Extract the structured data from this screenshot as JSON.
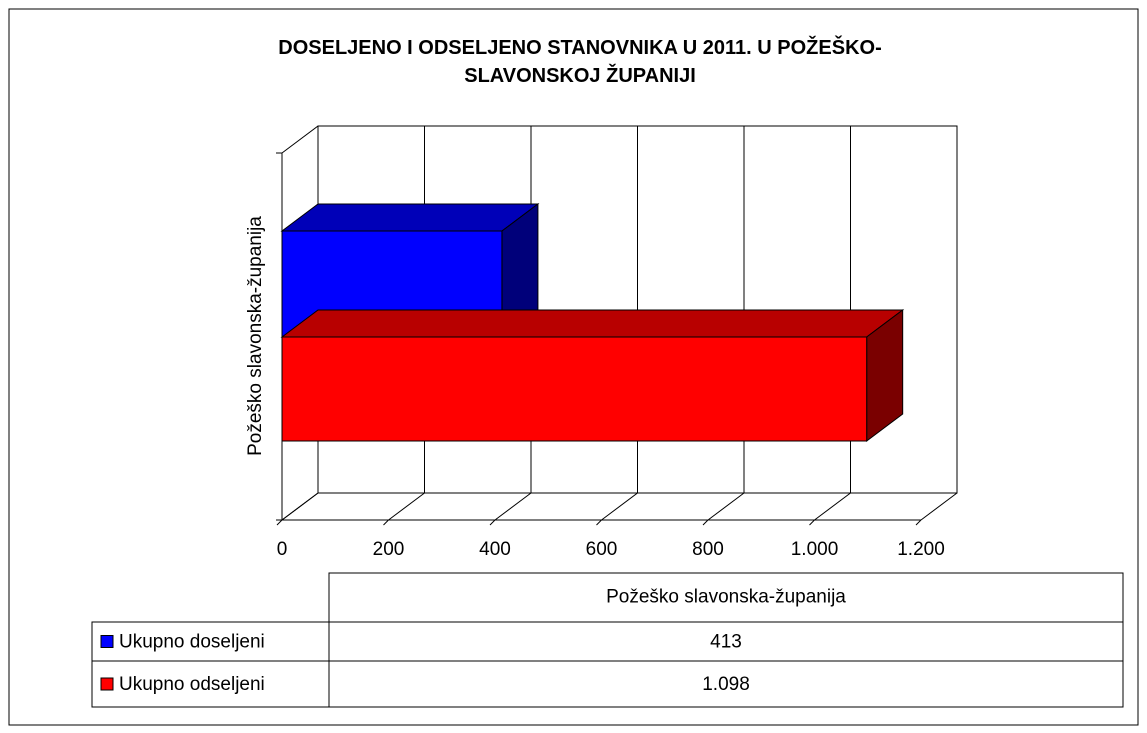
{
  "chart_data": {
    "type": "bar3d_horizontal",
    "title": "DOSELJENO I ODSELJENO STANOVNIKA U 2011. U POŽEŠKO-SLAVONSKOJ ŽUPANIJI",
    "categories": [
      "Požeško slavonska-županija"
    ],
    "series": [
      {
        "name": "Ukupno doseljeni",
        "color": "#0000ff",
        "values": [
          413
        ],
        "value_labels": [
          "413"
        ]
      },
      {
        "name": "Ukupno odseljeni",
        "color": "#ff0000",
        "values": [
          1098
        ],
        "value_labels": [
          "1.098"
        ]
      }
    ],
    "xlim": [
      0,
      1200
    ],
    "xticks": [
      0,
      200,
      400,
      600,
      800,
      {
        "value": 1000,
        "label": "1.000"
      },
      {
        "value": 1200,
        "label": "1.200"
      }
    ],
    "grid": true
  }
}
